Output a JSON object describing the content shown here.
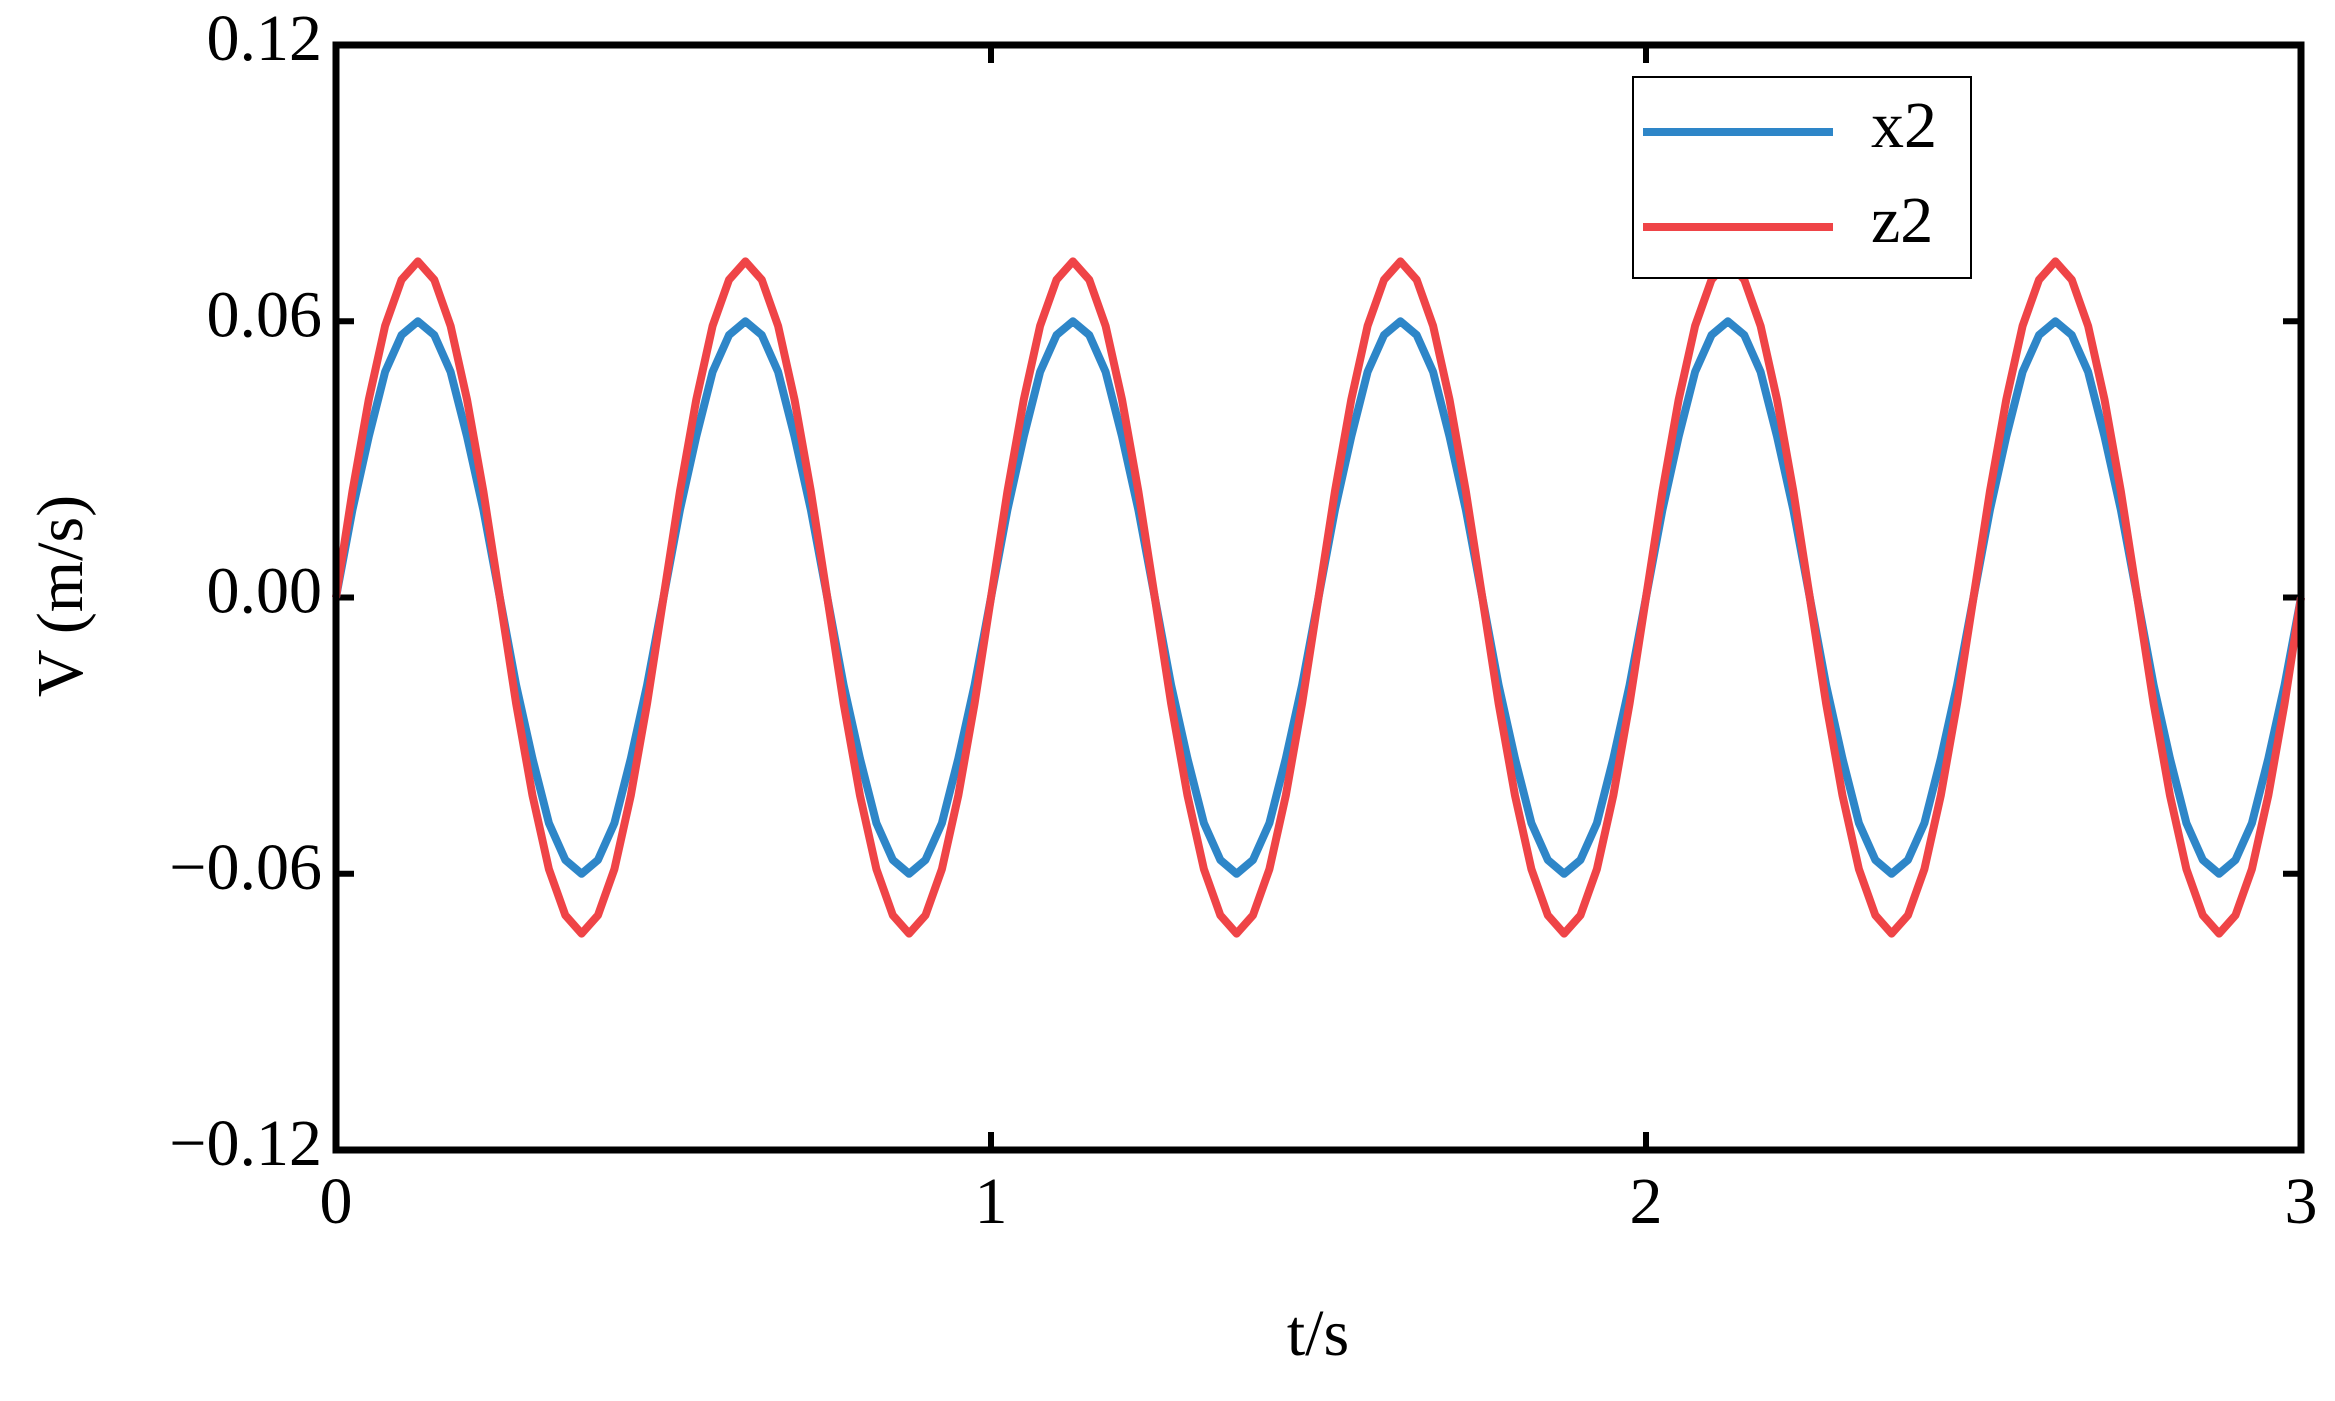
{
  "chart_data": {
    "type": "line",
    "xlabel": "t/s",
    "ylabel": "V (m/s)",
    "xlim": [
      0,
      3
    ],
    "xticks": [
      0,
      1,
      2,
      3
    ],
    "ylim": [
      -0.12,
      0.12
    ],
    "yticks": [
      {
        "value": -0.12,
        "label": "−0.12"
      },
      {
        "value": -0.06,
        "label": "−0.06"
      },
      {
        "value": 0,
        "label": "0.00"
      },
      0.06,
      0.12
    ],
    "legend": "upper right",
    "x": [
      0,
      0.025,
      0.05,
      0.075,
      0.1,
      0.125,
      0.15,
      0.175,
      0.2,
      0.225,
      0.25,
      0.275,
      0.3,
      0.325,
      0.35,
      0.375,
      0.4,
      0.425,
      0.45,
      0.475,
      0.5,
      0.525,
      0.55,
      0.575,
      0.6,
      0.625,
      0.65,
      0.675,
      0.7,
      0.725,
      0.75,
      0.775,
      0.8,
      0.825,
      0.85,
      0.875,
      0.9,
      0.925,
      0.95,
      0.975,
      1,
      1.025,
      1.05,
      1.075,
      1.1,
      1.125,
      1.15,
      1.175,
      1.2,
      1.225,
      1.25,
      1.275,
      1.3,
      1.325,
      1.35,
      1.375,
      1.4,
      1.425,
      1.45,
      1.475,
      1.5,
      1.525,
      1.55,
      1.575,
      1.6,
      1.625,
      1.65,
      1.675,
      1.7,
      1.725,
      1.75,
      1.775,
      1.8,
      1.825,
      1.85,
      1.875,
      1.9,
      1.925,
      1.95,
      1.975,
      2,
      2.025,
      2.05,
      2.075,
      2.1,
      2.125,
      2.15,
      2.175,
      2.2,
      2.225,
      2.25,
      2.275,
      2.3,
      2.325,
      2.35,
      2.375,
      2.4,
      2.425,
      2.45,
      2.475,
      2.5,
      2.525,
      2.55,
      2.575,
      2.6,
      2.625,
      2.65,
      2.675,
      2.7,
      2.725,
      2.75,
      2.775,
      2.8,
      2.825,
      2.85,
      2.875,
      2.9,
      2.925,
      2.95,
      2.975,
      3
    ],
    "series": [
      {
        "name": "x2",
        "color": "#2e86c8",
        "values": [
          0,
          0.019,
          0.035,
          0.049,
          0.057,
          0.06,
          0.057,
          0.049,
          0.035,
          0.019,
          0,
          -0.019,
          -0.035,
          -0.049,
          -0.057,
          -0.06,
          -0.057,
          -0.049,
          -0.035,
          -0.019,
          0,
          0.019,
          0.035,
          0.049,
          0.057,
          0.06,
          0.057,
          0.049,
          0.035,
          0.019,
          0,
          -0.019,
          -0.035,
          -0.049,
          -0.057,
          -0.06,
          -0.057,
          -0.049,
          -0.035,
          -0.019,
          0,
          0.019,
          0.035,
          0.049,
          0.057,
          0.06,
          0.057,
          0.049,
          0.035,
          0.019,
          0,
          -0.019,
          -0.035,
          -0.049,
          -0.057,
          -0.06,
          -0.057,
          -0.049,
          -0.035,
          -0.019,
          0,
          0.019,
          0.035,
          0.049,
          0.057,
          0.06,
          0.057,
          0.049,
          0.035,
          0.019,
          0,
          -0.019,
          -0.035,
          -0.049,
          -0.057,
          -0.06,
          -0.057,
          -0.049,
          -0.035,
          -0.019,
          0,
          0.019,
          0.035,
          0.049,
          0.057,
          0.06,
          0.057,
          0.049,
          0.035,
          0.019,
          0,
          -0.019,
          -0.035,
          -0.049,
          -0.057,
          -0.06,
          -0.057,
          -0.049,
          -0.035,
          -0.019,
          0,
          0.019,
          0.035,
          0.049,
          0.057,
          0.06,
          0.057,
          0.049,
          0.035,
          0.019,
          0,
          -0.019,
          -0.035,
          -0.049,
          -0.057,
          -0.06,
          -0.057,
          -0.049,
          -0.035,
          -0.019,
          0
        ]
      },
      {
        "name": "z2",
        "color": "#ef4447",
        "values": [
          0,
          0.023,
          0.043,
          0.059,
          0.069,
          0.073,
          0.069,
          0.059,
          0.043,
          0.023,
          0,
          -0.023,
          -0.043,
          -0.059,
          -0.069,
          -0.073,
          -0.069,
          -0.059,
          -0.043,
          -0.023,
          0,
          0.023,
          0.043,
          0.059,
          0.069,
          0.073,
          0.069,
          0.059,
          0.043,
          0.023,
          0,
          -0.023,
          -0.043,
          -0.059,
          -0.069,
          -0.073,
          -0.069,
          -0.059,
          -0.043,
          -0.023,
          0,
          0.023,
          0.043,
          0.059,
          0.069,
          0.073,
          0.069,
          0.059,
          0.043,
          0.023,
          0,
          -0.023,
          -0.043,
          -0.059,
          -0.069,
          -0.073,
          -0.069,
          -0.059,
          -0.043,
          -0.023,
          0,
          0.023,
          0.043,
          0.059,
          0.069,
          0.073,
          0.069,
          0.059,
          0.043,
          0.023,
          0,
          -0.023,
          -0.043,
          -0.059,
          -0.069,
          -0.073,
          -0.069,
          -0.059,
          -0.043,
          -0.023,
          0,
          0.023,
          0.043,
          0.059,
          0.069,
          0.073,
          0.069,
          0.059,
          0.043,
          0.023,
          0,
          -0.023,
          -0.043,
          -0.059,
          -0.069,
          -0.073,
          -0.069,
          -0.059,
          -0.043,
          -0.023,
          0,
          0.023,
          0.043,
          0.059,
          0.069,
          0.073,
          0.069,
          0.059,
          0.043,
          0.023,
          0,
          -0.023,
          -0.043,
          -0.059,
          -0.069,
          -0.073,
          -0.069,
          -0.059,
          -0.043,
          -0.023,
          0
        ]
      }
    ]
  }
}
